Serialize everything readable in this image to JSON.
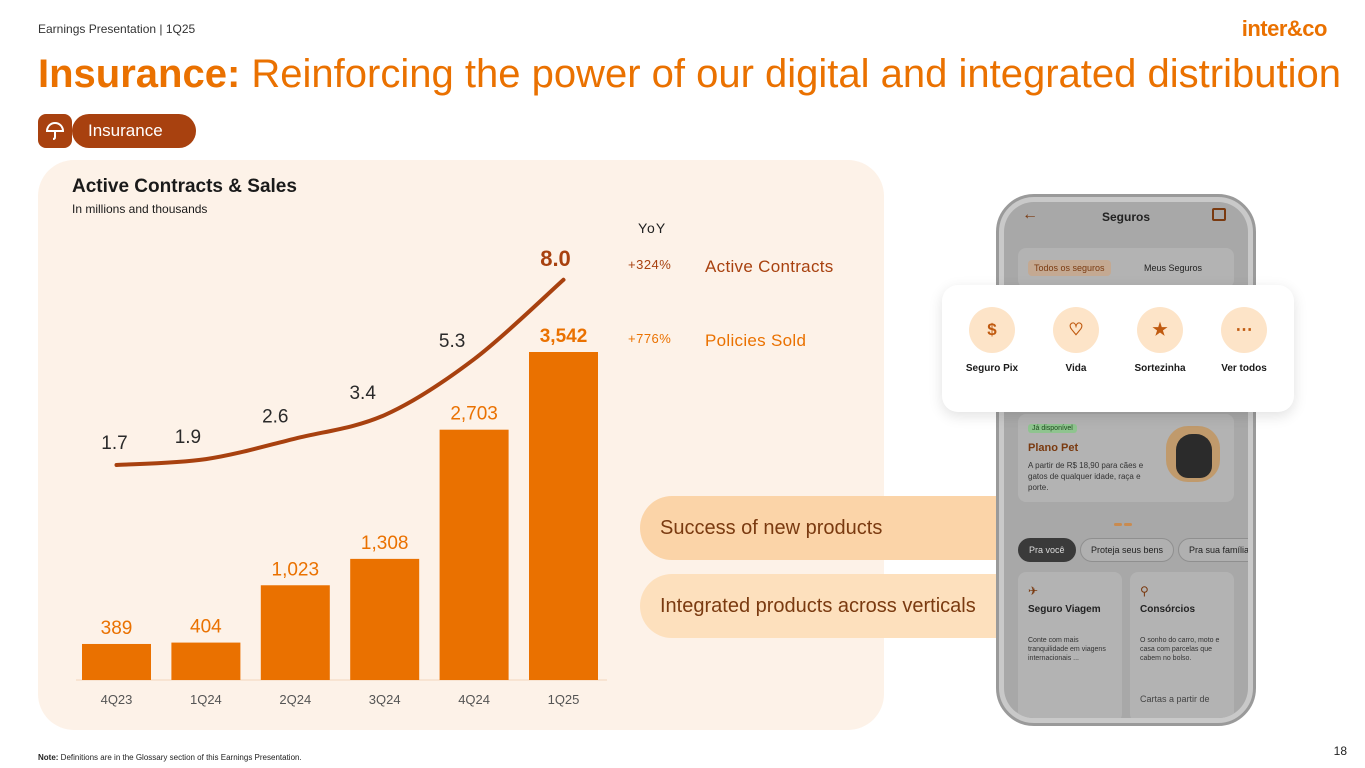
{
  "header": {
    "doc_label": "Earnings Presentation | 1Q25",
    "logo": "inter&co"
  },
  "title": {
    "bold": "Insurance:",
    "rest": " Reinforcing the power of our digital and integrated distribution"
  },
  "section_pill": {
    "label": "Insurance",
    "icon": "umbrella-icon"
  },
  "chart_data": {
    "type": "bar",
    "title": "Active Contracts & Sales",
    "subtitle": "In millions and thousands",
    "categories": [
      "4Q23",
      "1Q24",
      "2Q24",
      "3Q24",
      "4Q24",
      "1Q25"
    ],
    "series": [
      {
        "name": "Policies Sold",
        "type": "bar",
        "values": [
          389,
          404,
          1023,
          1308,
          2703,
          3542
        ],
        "labels": [
          "389",
          "404",
          "1,023",
          "1,308",
          "2,703",
          "3,542"
        ],
        "color": "#ea7100"
      },
      {
        "name": "Active Contracts",
        "type": "line",
        "values": [
          1.7,
          1.9,
          2.6,
          3.4,
          5.3,
          8.0
        ],
        "labels": [
          "1.7",
          "1.9",
          "2.6",
          "3.4",
          "5.3",
          "8.0"
        ],
        "color": "#a8410f"
      }
    ],
    "yoy": {
      "header": "YoY",
      "rows": [
        {
          "value": "+324%",
          "label": "Active Contracts"
        },
        {
          "value": "+776%",
          "label": "Policies Sold"
        }
      ]
    }
  },
  "banners": [
    "Success of new products",
    "Integrated products across verticals"
  ],
  "phone": {
    "title": "Seguros",
    "tabs": [
      "Todos os seguros",
      "Meus Seguros"
    ],
    "quick_actions": [
      {
        "label": "Seguro Pix",
        "icon": "dollar-shield-icon"
      },
      {
        "label": "Vida",
        "icon": "heart-icon"
      },
      {
        "label": "Sortezinha",
        "icon": "ticket-star-icon"
      },
      {
        "label": "Ver todos",
        "icon": "more-dots-icon"
      }
    ],
    "pet_card": {
      "badge": "Já disponível",
      "title": "Plano Pet",
      "description": "A partir de R$ 18,90 para cães e gatos de qualquer idade, raça e porte."
    },
    "chips": [
      "Pra você",
      "Proteja seus bens",
      "Pra sua família"
    ],
    "products": [
      {
        "title": "Seguro Viagem",
        "description": "Conte com mais tranquilidade em viagens internacionais ...",
        "footer": ""
      },
      {
        "title": "Consórcios",
        "description": "O sonho do carro, moto e casa com parcelas que cabem no bolso.",
        "footer": "Cartas a partir de"
      }
    ]
  },
  "footnote": {
    "bold": "Note:",
    "text": " Definitions are in the Glossary section of this Earnings Presentation."
  },
  "page_number": "18",
  "colors": {
    "accent": "#ea7100",
    "brand_dark": "#a8410f",
    "panel_bg": "#fdf2e8"
  }
}
